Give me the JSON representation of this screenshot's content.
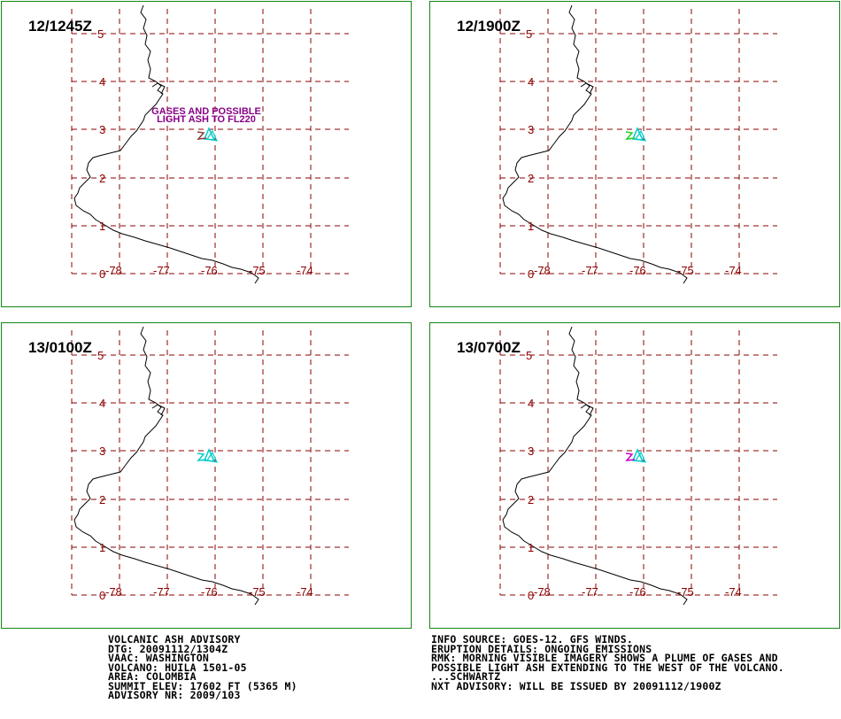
{
  "panels": [
    {
      "id": "p1",
      "time_label": "12/1245Z",
      "ash_color": "#00cccc",
      "edge_color": "#8b3a3a",
      "annotation": [
        "GASES AND POSSIBLE",
        "LIGHT ASH TO FL220"
      ]
    },
    {
      "id": "p2",
      "time_label": "12/1900Z",
      "ash_color": "#00cccc",
      "edge_color": "#22cc22",
      "annotation": []
    },
    {
      "id": "p3",
      "time_label": "13/0100Z",
      "ash_color": "#00cccc",
      "edge_color": "#00cccc",
      "annotation": []
    },
    {
      "id": "p4",
      "time_label": "13/0700Z",
      "ash_color": "#00cccc",
      "edge_color": "#cc00cc",
      "annotation": []
    }
  ],
  "map": {
    "lat_labels": [
      "5",
      "4",
      "3",
      "2",
      "1",
      "0"
    ],
    "lon_labels": [
      "-78",
      "-77",
      "-76",
      "-75",
      "-74"
    ],
    "grid_color": "#8b0000",
    "coast_color": "#000000"
  },
  "advisory_left": [
    "VOLCANIC ASH ADVISORY",
    "DTG: 20091112/1304Z",
    "VAAC: WASHINGTON",
    "VOLCANO: HUILA 1501-05",
    "AREA: COLOMBIA",
    "SUMMIT ELEV: 17602 FT (5365 M)",
    "ADVISORY NR: 2009/103"
  ],
  "advisory_right": [
    "INFO SOURCE: GOES-12. GFS WINDS.",
    "ERUPTION DETAILS: ONGOING EMISSIONS",
    "RMK: MORNING VISIBLE IMAGERY SHOWS A PLUME OF GASES AND",
    "POSSIBLE LIGHT ASH EXTENDING TO THE WEST OF THE VOLCANO.",
    "...SCHWARTZ",
    "NXT ADVISORY: WILL BE ISSUED BY 20091112/1900Z"
  ]
}
